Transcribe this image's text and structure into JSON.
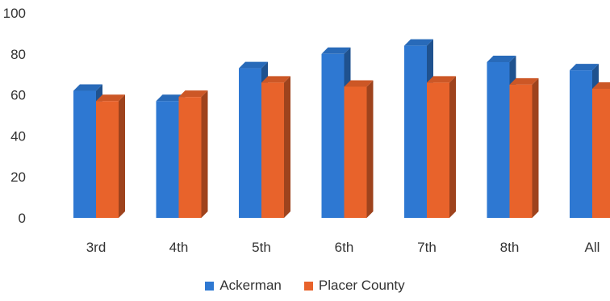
{
  "chart_data": {
    "type": "bar",
    "style": "3d-clustered-column",
    "categories": [
      "3rd",
      "4th",
      "5th",
      "6th",
      "7th",
      "8th",
      "All"
    ],
    "series": [
      {
        "name": "Ackerman",
        "color": "#2E78D2",
        "values": [
          62,
          57,
          73,
          80,
          84,
          76,
          72
        ]
      },
      {
        "name": "Placer County",
        "color": "#E8632B",
        "values": [
          57,
          59,
          66,
          64,
          66,
          65,
          63
        ]
      }
    ],
    "yticks": [
      "0",
      "20",
      "40",
      "60",
      "80",
      "100"
    ],
    "ylim": [
      0,
      100
    ],
    "grid": false,
    "legend_position": "bottom"
  }
}
